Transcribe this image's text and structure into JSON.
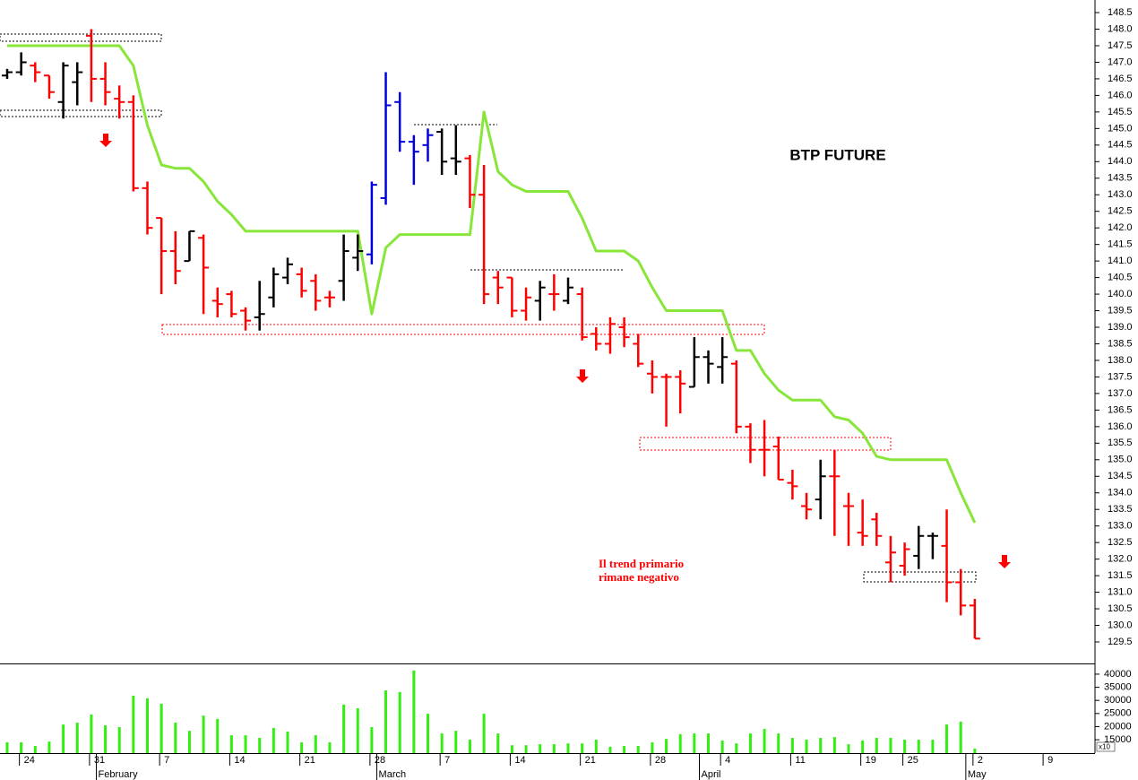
{
  "chart_data": [
    {
      "type": "ohlc",
      "title": "BTP FUTURE",
      "annotation": [
        "Il trend primario",
        "rimane negativo"
      ],
      "open": [
        146.6,
        146.7,
        146.9,
        146.6,
        145.8,
        146.4,
        147.8,
        146.5,
        145.9,
        145.8,
        143.2,
        142.3,
        141.3,
        141.0,
        141.7,
        139.8,
        140.0,
        139.5,
        139.3,
        139.9,
        140.5,
        140.6,
        140.4,
        139.9,
        140.4,
        141.1,
        141.2,
        142.9,
        145.8,
        144.6,
        144.5,
        144.9,
        144.1,
        144.1,
        143.0,
        140.5,
        140.5,
        139.5,
        139.8,
        140.0,
        139.8,
        140.0,
        138.8,
        138.5,
        139.0,
        138.5,
        137.6,
        137.5,
        137.5,
        137.2,
        138.1,
        137.8,
        137.9,
        136.0,
        135.3,
        135.4,
        134.3,
        133.6,
        133.8,
        134.5,
        133.6,
        132.8,
        133.2,
        131.9,
        131.8,
        132.1,
        132.7,
        132.4,
        131.3,
        130.6,
        null,
        null,
        null,
        null,
        null
      ],
      "high": [
        146.8,
        147.3,
        147.0,
        146.6,
        147.0,
        147.0,
        148.0,
        147.0,
        146.3,
        146.0,
        143.4,
        142.3,
        141.9,
        141.9,
        141.8,
        140.2,
        140.1,
        139.6,
        140.4,
        140.8,
        141.1,
        140.8,
        140.6,
        140.1,
        141.8,
        141.8,
        143.4,
        146.7,
        146.1,
        144.8,
        145.0,
        145.0,
        145.1,
        144.2,
        143.9,
        140.7,
        140.5,
        140.2,
        140.4,
        140.6,
        140.5,
        140.2,
        139.0,
        139.3,
        139.3,
        138.8,
        138.0,
        137.6,
        137.7,
        138.7,
        138.3,
        138.7,
        138.0,
        136.1,
        136.2,
        135.7,
        134.7,
        134.0,
        135.0,
        135.3,
        134.0,
        133.8,
        133.4,
        132.7,
        132.5,
        133.0,
        132.8,
        133.5,
        131.7,
        130.8,
        null,
        null,
        null,
        null,
        null
      ],
      "low": [
        146.5,
        146.6,
        146.4,
        145.9,
        145.3,
        145.7,
        145.8,
        145.7,
        145.3,
        143.1,
        141.8,
        140.0,
        140.3,
        141.0,
        139.4,
        139.3,
        139.3,
        138.9,
        138.9,
        139.6,
        140.3,
        139.9,
        139.5,
        139.6,
        139.8,
        140.7,
        140.9,
        142.7,
        144.3,
        143.3,
        144.0,
        143.6,
        143.6,
        142.6,
        139.7,
        139.7,
        139.3,
        139.2,
        139.2,
        139.5,
        139.7,
        138.6,
        138.3,
        138.2,
        138.4,
        137.8,
        137.0,
        136.0,
        136.4,
        137.2,
        137.3,
        137.3,
        135.8,
        134.9,
        134.5,
        134.4,
        133.8,
        133.2,
        133.2,
        132.7,
        132.4,
        132.4,
        132.4,
        131.3,
        131.5,
        131.7,
        132.0,
        130.7,
        130.3,
        129.6,
        null,
        null,
        null,
        null,
        null
      ],
      "close": [
        146.7,
        147.0,
        146.7,
        146.1,
        146.9,
        146.7,
        146.5,
        146.1,
        145.8,
        143.2,
        142.0,
        141.3,
        140.7,
        141.9,
        140.8,
        139.7,
        139.4,
        139.2,
        139.4,
        140.6,
        140.9,
        140.1,
        139.8,
        139.9,
        141.3,
        141.3,
        143.3,
        145.7,
        144.6,
        144.3,
        144.8,
        144.0,
        144.0,
        143.0,
        140.0,
        140.2,
        139.5,
        139.9,
        140.2,
        140.0,
        140.2,
        138.7,
        138.5,
        139.1,
        138.7,
        137.9,
        137.5,
        137.5,
        137.3,
        138.1,
        137.9,
        138.1,
        136.0,
        135.3,
        135.3,
        134.4,
        134.2,
        133.5,
        134.5,
        134.5,
        133.6,
        132.7,
        132.7,
        132.2,
        132.3,
        132.7,
        132.7,
        131.3,
        130.6,
        129.6,
        null,
        null,
        null,
        null,
        null
      ],
      "bar_colors": [
        "#000000",
        "#000000",
        "#ff0000",
        "#ff0000",
        "#000000",
        "#000000",
        "#ff0000",
        "#ff0000",
        "#ff0000",
        "#ff0000",
        "#ff0000",
        "#ff0000",
        "#ff0000",
        "#000000",
        "#ff0000",
        "#ff0000",
        "#ff0000",
        "#ff0000",
        "#000000",
        "#000000",
        "#000000",
        "#ff0000",
        "#ff0000",
        "#ff0000",
        "#000000",
        "#000000",
        "#0000dd",
        "#0000dd",
        "#0000dd",
        "#0000dd",
        "#0000dd",
        "#000000",
        "#000000",
        "#ff0000",
        "#ff0000",
        "#ff0000",
        "#ff0000",
        "#ff0000",
        "#000000",
        "#ff0000",
        "#000000",
        "#ff0000",
        "#ff0000",
        "#ff0000",
        "#ff0000",
        "#ff0000",
        "#ff0000",
        "#ff0000",
        "#ff0000",
        "#000000",
        "#000000",
        "#000000",
        "#ff0000",
        "#ff0000",
        "#ff0000",
        "#ff0000",
        "#ff0000",
        "#ff0000",
        "#000000",
        "#ff0000",
        "#ff0000",
        "#ff0000",
        "#ff0000",
        "#ff0000",
        "#ff0000",
        "#000000",
        "#000000",
        "#ff0000",
        "#ff0000",
        "#ff0000",
        null,
        null,
        null,
        null,
        null
      ],
      "trend_line": {
        "color": "#88e63a",
        "values": [
          147.5,
          147.5,
          147.5,
          147.5,
          147.5,
          147.5,
          147.5,
          147.5,
          147.5,
          146.9,
          145.1,
          143.9,
          143.8,
          143.8,
          143.4,
          142.8,
          142.4,
          141.9,
          141.9,
          141.9,
          141.9,
          141.9,
          141.9,
          141.9,
          141.9,
          141.9,
          139.4,
          141.4,
          141.8,
          141.8,
          141.8,
          141.8,
          141.8,
          141.8,
          145.5,
          143.7,
          143.3,
          143.1,
          143.1,
          143.1,
          143.1,
          142.3,
          141.3,
          141.3,
          141.3,
          141.0,
          140.2,
          139.5,
          139.5,
          139.5,
          139.5,
          139.5,
          138.3,
          138.3,
          137.6,
          137.1,
          136.8,
          136.8,
          136.8,
          136.3,
          136.2,
          135.8,
          135.1,
          135.0,
          135.0,
          135.0,
          135.0,
          135.0,
          134.0,
          133.1,
          null,
          null,
          null,
          null,
          null
        ]
      },
      "ylim": [
        128.85,
        148.88
      ],
      "yticks": [
        129.5,
        {
          "value": 130,
          "label": "130.0"
        },
        130.5,
        {
          "value": 131,
          "label": "131.0"
        },
        131.5,
        {
          "value": 132,
          "label": "132.0"
        },
        132.5,
        {
          "value": 133,
          "label": "133.0"
        },
        133.5,
        {
          "value": 134,
          "label": "134.0"
        },
        134.5,
        {
          "value": 135,
          "label": "135.0"
        },
        135.5,
        {
          "value": 136,
          "label": "136.0"
        },
        136.5,
        {
          "value": 137,
          "label": "137.0"
        },
        137.5,
        {
          "value": 138,
          "label": "138.0"
        },
        138.5,
        {
          "value": 139,
          "label": "139.0"
        },
        139.5,
        {
          "value": 140,
          "label": "140.0"
        },
        140.5,
        {
          "value": 141,
          "label": "141.0"
        },
        141.5,
        {
          "value": 142,
          "label": "142.0"
        },
        142.5,
        {
          "value": 143,
          "label": "143.0"
        },
        143.5,
        {
          "value": 144,
          "label": "144.0"
        },
        144.5,
        {
          "value": 145,
          "label": "145.0"
        },
        145.5,
        {
          "value": 146,
          "label": "146.0"
        },
        146.5,
        {
          "value": 147,
          "label": "147.0"
        },
        147.5,
        {
          "value": 148,
          "label": "148.0"
        },
        148.5
      ]
    },
    {
      "type": "bar",
      "color": "#33ee11",
      "categories": [
        null,
        "24",
        null,
        null,
        null,
        null,
        "31",
        null,
        null,
        null,
        null,
        "7",
        null,
        null,
        null,
        null,
        "14",
        null,
        null,
        null,
        null,
        "21",
        null,
        null,
        null,
        null,
        "28",
        null,
        null,
        null,
        null,
        "7",
        null,
        null,
        null,
        null,
        "14",
        null,
        null,
        null,
        null,
        "21",
        null,
        null,
        null,
        null,
        "28",
        null,
        null,
        null,
        null,
        "4",
        null,
        null,
        null,
        null,
        "11",
        null,
        null,
        null,
        null,
        "19",
        null,
        null,
        "25",
        null,
        null,
        null,
        null,
        "2",
        null,
        null,
        null,
        null,
        "9"
      ],
      "months": [
        null,
        null,
        null,
        null,
        null,
        null,
        null,
        "February",
        null,
        null,
        null,
        null,
        null,
        null,
        null,
        null,
        null,
        null,
        null,
        null,
        null,
        null,
        null,
        null,
        null,
        null,
        null,
        "March",
        null,
        null,
        null,
        null,
        null,
        null,
        null,
        null,
        null,
        null,
        null,
        null,
        null,
        null,
        null,
        null,
        null,
        null,
        null,
        null,
        null,
        null,
        "April",
        null,
        null,
        null,
        null,
        null,
        null,
        null,
        null,
        null,
        null,
        null,
        null,
        null,
        null,
        null,
        null,
        null,
        null,
        "May",
        null,
        null,
        null,
        null,
        null
      ],
      "values": [
        14000,
        14000,
        12600,
        14300,
        20800,
        21500,
        24600,
        20500,
        19800,
        31800,
        30800,
        28700,
        21500,
        18400,
        24200,
        22900,
        16700,
        16700,
        15700,
        19500,
        18100,
        14000,
        16700,
        14000,
        28400,
        27000,
        19800,
        33800,
        33200,
        41400,
        24900,
        17400,
        18400,
        15000,
        24900,
        17400,
        12900,
        12900,
        13300,
        13300,
        13600,
        13600,
        15000,
        12300,
        12600,
        12600,
        14000,
        15300,
        17100,
        17400,
        17400,
        14700,
        13600,
        17400,
        19100,
        17400,
        15700,
        15000,
        15700,
        16000,
        13300,
        14700,
        15700,
        15700,
        15000,
        15000,
        15000,
        20800,
        21900,
        11600,
        null,
        null,
        null,
        null,
        null
      ],
      "ylim": [
        9900,
        43400
      ],
      "yticks": [
        15000,
        20000,
        25000,
        30000,
        35000,
        40000
      ],
      "unit_label": "x10"
    }
  ]
}
